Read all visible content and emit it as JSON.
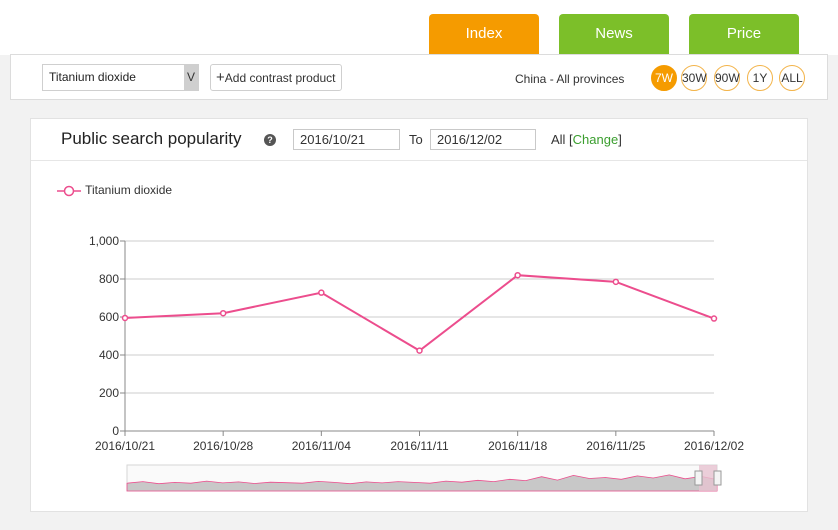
{
  "tabs": [
    {
      "label": "Index",
      "color": "#f59b00"
    },
    {
      "label": "News",
      "color": "#7cbf29"
    },
    {
      "label": "Price",
      "color": "#7cbf29"
    }
  ],
  "controls": {
    "product_value": "Titanium dioxide",
    "dropdown_arrow": "V",
    "add_button_label": "Add contrast product",
    "region": "China - All provinces",
    "ranges": [
      "7W",
      "30W",
      "90W",
      "1Y",
      "ALL"
    ],
    "active_range": "7W"
  },
  "panel": {
    "title": "Public search popularity",
    "help_icon": "question-icon",
    "start_date": "2016/10/21",
    "to_label": "To",
    "end_date": "2016/12/02",
    "all_prefix": "All [",
    "change_label": "Change",
    "all_suffix": "]"
  },
  "chart_data": {
    "type": "line",
    "x": [
      "2016/10/21",
      "2016/10/28",
      "2016/11/04",
      "2016/11/11",
      "2016/11/18",
      "2016/11/25",
      "2016/12/02"
    ],
    "series": [
      {
        "name": "Titanium dioxide",
        "color": "#ec4d8d",
        "values": [
          595,
          620,
          728,
          423,
          820,
          785,
          592
        ]
      }
    ],
    "ylim": [
      0,
      1000
    ],
    "yticks": [
      "0",
      "200",
      "400",
      "600",
      "800",
      "1,000"
    ],
    "grid": true,
    "legend": "top-left",
    "navigator": true
  }
}
